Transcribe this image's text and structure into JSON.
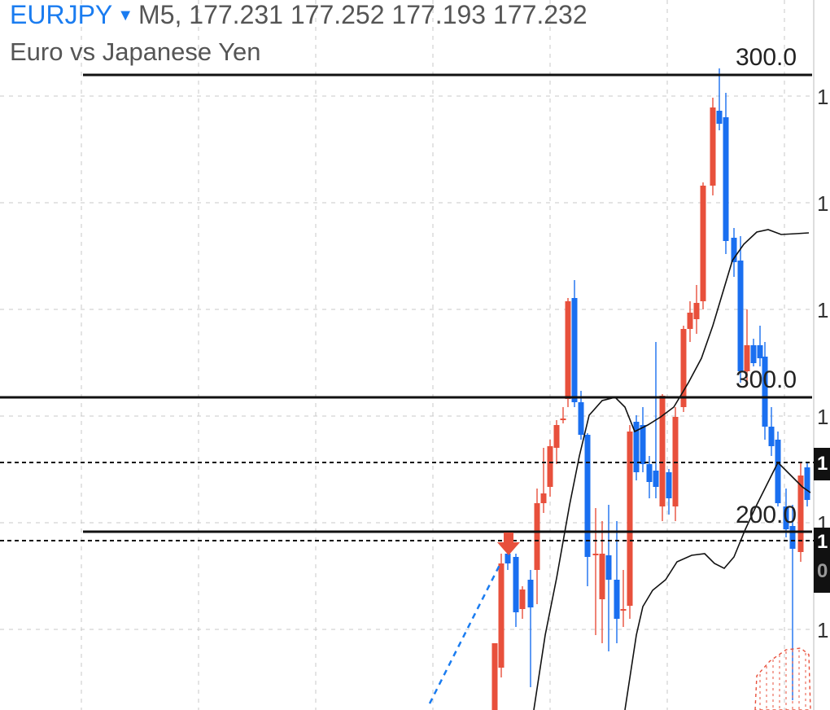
{
  "header": {
    "symbol": "EURJPY",
    "dropdown_icon": "caret-down-icon",
    "quote_line": "M5, 177.231 177.252 177.193 177.232",
    "description": "Euro vs Japanese Yen"
  },
  "levels": {
    "upper_label": "300.0",
    "middle_label": "300.0",
    "lower_label": "200.0"
  },
  "price_axis": {
    "tick_glyph": "1",
    "tag_top": "1",
    "tag_bottom": "1",
    "tag_bottom_extra": "0"
  },
  "colors": {
    "bull": "#1a6ff0",
    "bear": "#e8503c",
    "accent": "#1a7cf0",
    "grid": "#c8c8c8"
  },
  "signal": {
    "icon": "sell-arrow-icon",
    "color": "#e8503c"
  }
}
